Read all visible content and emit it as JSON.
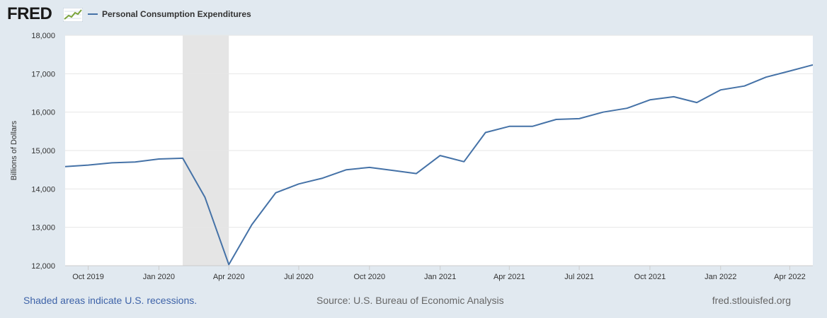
{
  "header": {
    "logo_text": "FRED",
    "logo_icon": "line-graph-icon"
  },
  "chart_data": {
    "type": "line",
    "title": "",
    "xlabel": "",
    "ylabel": "Billions of Dollars",
    "ylim": [
      12000,
      18000
    ],
    "yticks": [
      12000,
      13000,
      14000,
      15000,
      16000,
      17000,
      18000
    ],
    "ytick_labels": [
      "12,000",
      "13,000",
      "14,000",
      "15,000",
      "16,000",
      "17,000",
      "18,000"
    ],
    "xlim": [
      "2019-09-01",
      "2022-05-01"
    ],
    "xticks": [
      "2019-10-01",
      "2020-01-01",
      "2020-04-01",
      "2020-07-01",
      "2020-10-01",
      "2021-01-01",
      "2021-04-01",
      "2021-07-01",
      "2021-10-01",
      "2022-01-01",
      "2022-04-01"
    ],
    "xtick_labels": [
      "Oct 2019",
      "Jan 2020",
      "Apr 2020",
      "Jul 2020",
      "Oct 2020",
      "Jan 2021",
      "Apr 2021",
      "Jul 2021",
      "Oct 2021",
      "Jan 2022",
      "Apr 2022"
    ],
    "grid": true,
    "legend_position": "top-left",
    "recessions": [
      {
        "start": "2020-02-01",
        "end": "2020-04-01"
      }
    ],
    "series": [
      {
        "name": "Personal Consumption Expenditures",
        "color": "#4572a7",
        "x": [
          "2019-09-01",
          "2019-10-01",
          "2019-11-01",
          "2019-12-01",
          "2020-01-01",
          "2020-02-01",
          "2020-03-01",
          "2020-04-01",
          "2020-05-01",
          "2020-06-01",
          "2020-07-01",
          "2020-08-01",
          "2020-09-01",
          "2020-10-01",
          "2020-11-01",
          "2020-12-01",
          "2021-01-01",
          "2021-02-01",
          "2021-03-01",
          "2021-04-01",
          "2021-05-01",
          "2021-06-01",
          "2021-07-01",
          "2021-08-01",
          "2021-09-01",
          "2021-10-01",
          "2021-11-01",
          "2021-12-01",
          "2022-01-01",
          "2022-02-01",
          "2022-03-01",
          "2022-04-01",
          "2022-05-01"
        ],
        "values": [
          14580,
          14620,
          14680,
          14700,
          14780,
          14800,
          13780,
          12030,
          13070,
          13900,
          14130,
          14280,
          14500,
          14560,
          14480,
          14400,
          14870,
          14710,
          15470,
          15630,
          15630,
          15810,
          15830,
          16000,
          16100,
          16320,
          16400,
          16250,
          16580,
          16680,
          16910,
          17070,
          17230
        ]
      }
    ]
  },
  "footer": {
    "recession_note": "Shaded areas indicate U.S. recessions.",
    "source": "Source: U.S. Bureau of Economic Analysis",
    "site": "fred.stlouisfed.org"
  }
}
